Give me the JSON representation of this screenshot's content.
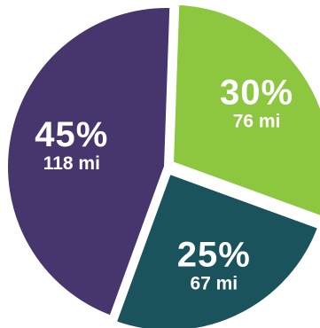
{
  "chart_data": {
    "type": "pie",
    "slices": [
      {
        "percent_label": "30%",
        "value_label": "76 mi",
        "value": 76,
        "percent": 30,
        "color": "#8dc63f"
      },
      {
        "percent_label": "25%",
        "value_label": "67 mi",
        "value": 67,
        "percent": 25,
        "color": "#1a535c"
      },
      {
        "percent_label": "45%",
        "value_label": "118 mi",
        "value": 118,
        "percent": 45,
        "color": "#47356d"
      }
    ]
  }
}
